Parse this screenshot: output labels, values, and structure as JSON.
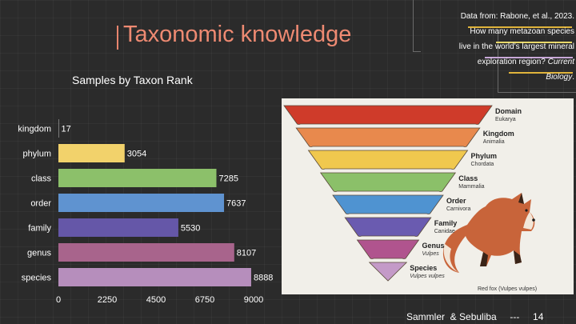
{
  "slide": {
    "title": "Taxonomic knowledge",
    "chart_heading": "Samples by Taxon Rank",
    "citation": {
      "line1": "Data from: Rabone, et al., 2023.",
      "line2": "How many metazoan species",
      "line3": "live in the world's largest mineral",
      "line4_plain": "exploration region? ",
      "line4_italic": "Current",
      "line5_italic": "Biology",
      "line5_end": "."
    },
    "footer": "Sammler  & Sebuliba     ---     14"
  },
  "chart_data": {
    "type": "bar",
    "orientation": "horizontal",
    "title": "Samples by Taxon Rank",
    "categories": [
      "kingdom",
      "phylum",
      "class",
      "order",
      "family",
      "genus",
      "species"
    ],
    "values": [
      17,
      3054,
      7285,
      7637,
      5530,
      8107,
      8888
    ],
    "colors": [
      "#c9c9c9",
      "#f2d26b",
      "#8cc06a",
      "#5f93d0",
      "#6557a8",
      "#a8648c",
      "#b68ebc"
    ],
    "xlim": [
      0,
      9000
    ],
    "xticks": [
      "0",
      "2250",
      "4500",
      "6750",
      "9000"
    ],
    "grid": false,
    "legend": "none"
  },
  "pyramid": {
    "levels": [
      {
        "rank": "Domain",
        "name": "Eukarya",
        "color": "#cf3b2a"
      },
      {
        "rank": "Kingdom",
        "name": "Animalia",
        "color": "#e8894d"
      },
      {
        "rank": "Phylum",
        "name": "Chordata",
        "color": "#f0c84e"
      },
      {
        "rank": "Class",
        "name": "Mammalia",
        "color": "#8bc069"
      },
      {
        "rank": "Order",
        "name": "Carnivora",
        "color": "#4f93d1"
      },
      {
        "rank": "Family",
        "name": "Canidae",
        "color": "#6a5bb0"
      },
      {
        "rank": "Genus",
        "name": "Vulpes",
        "color": "#b0548e"
      },
      {
        "rank": "Species",
        "name": "Vulpes vulpes",
        "color": "#c49ac8"
      }
    ],
    "caption": "Red fox (Vulpes vulpes)"
  }
}
